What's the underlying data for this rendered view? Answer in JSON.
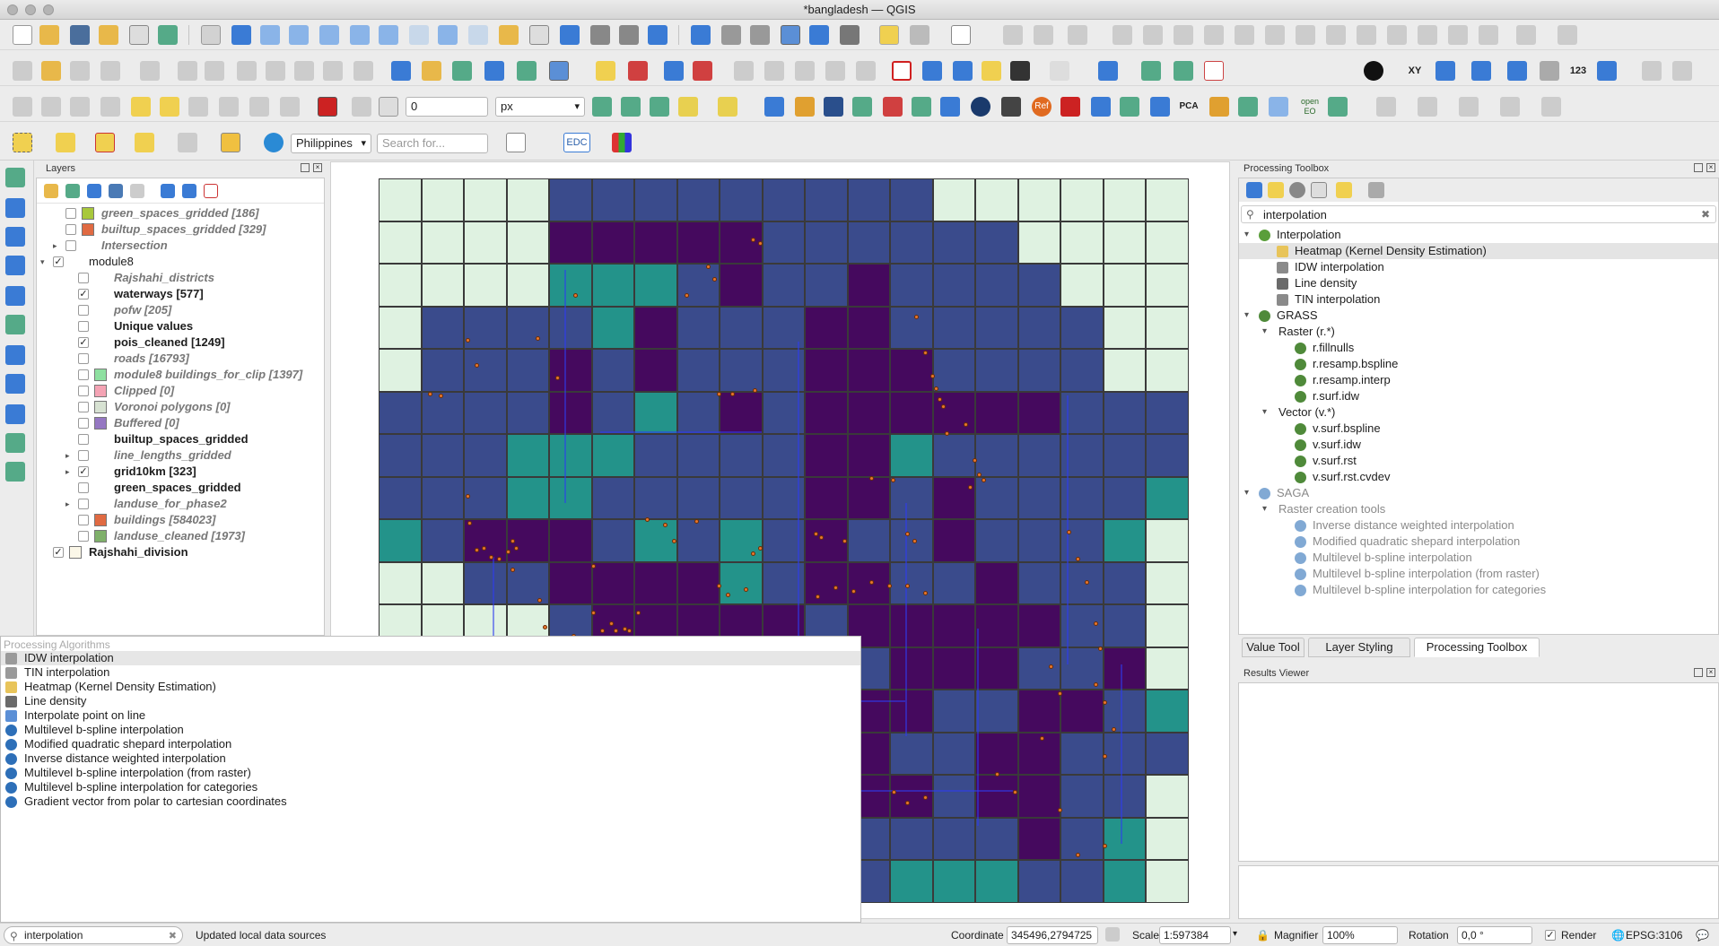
{
  "window": {
    "title": "*bangladesh — QGIS"
  },
  "toolbar": {
    "snap_tolerance_value": "0",
    "snap_units": "px",
    "locator_country": "Philippines",
    "search_placeholder": "Search for...",
    "edc_label": "EDC",
    "ref_label": "Ref",
    "pca_label": "PCA",
    "xy_label": "XY",
    "num_label": "123",
    "openeo_label": "open EO"
  },
  "layers_panel": {
    "title": "Layers",
    "items": [
      {
        "label": "green_spaces_gridded [186]",
        "style": "it",
        "checked": false,
        "swatch": "#a8c83c",
        "indent": 1
      },
      {
        "label": "builtup_spaces_gridded [329]",
        "style": "it",
        "checked": false,
        "swatch": "#e06a42",
        "indent": 1
      },
      {
        "label": "Intersection",
        "style": "it",
        "checked": false,
        "swatch": "",
        "indent": 1,
        "expander": "▸"
      },
      {
        "label": "module8",
        "style": "",
        "checked": true,
        "swatch": "",
        "indent": 0,
        "expander": "▾"
      },
      {
        "label": "Rajshahi_districts",
        "style": "it",
        "checked": false,
        "swatch": "",
        "indent": 2
      },
      {
        "label": "waterways [577]",
        "style": "bold",
        "checked": true,
        "swatch": "",
        "indent": 2
      },
      {
        "label": "pofw [205]",
        "style": "it",
        "checked": false,
        "swatch": "",
        "indent": 2
      },
      {
        "label": "Unique values",
        "style": "bold",
        "checked": false,
        "swatch": "",
        "indent": 2
      },
      {
        "label": "pois_cleaned [1249]",
        "style": "bold",
        "checked": true,
        "swatch": "",
        "indent": 2
      },
      {
        "label": "roads [16793]",
        "style": "it",
        "checked": false,
        "swatch": "",
        "indent": 2
      },
      {
        "label": "module8 buildings_for_clip [1397]",
        "style": "it",
        "checked": false,
        "swatch": "#8ee0a0",
        "indent": 2
      },
      {
        "label": "Clipped [0]",
        "style": "it",
        "checked": false,
        "swatch": "#f4a3b4",
        "indent": 2
      },
      {
        "label": "Voronoi polygons [0]",
        "style": "it",
        "checked": false,
        "swatch": "#d7e2d2",
        "indent": 2
      },
      {
        "label": "Buffered [0]",
        "style": "it",
        "checked": false,
        "swatch": "#9577c2",
        "indent": 2
      },
      {
        "label": "builtup_spaces_gridded",
        "style": "bold",
        "checked": false,
        "swatch": "",
        "indent": 2
      },
      {
        "label": "line_lengths_gridded",
        "style": "it",
        "checked": false,
        "swatch": "",
        "indent": 2,
        "expander": "▸"
      },
      {
        "label": "grid10km [323]",
        "style": "bold",
        "checked": true,
        "swatch": "",
        "indent": 2,
        "expander": "▸"
      },
      {
        "label": "green_spaces_gridded",
        "style": "bold",
        "checked": false,
        "swatch": "",
        "indent": 2
      },
      {
        "label": "landuse_for_phase2",
        "style": "it",
        "checked": false,
        "swatch": "",
        "indent": 2,
        "expander": "▸"
      },
      {
        "label": "buildings [584023]",
        "style": "it",
        "checked": false,
        "swatch": "#e06a42",
        "indent": 2
      },
      {
        "label": "landuse_cleaned [1973]",
        "style": "it",
        "checked": false,
        "swatch": "#7fb06a",
        "indent": 2
      },
      {
        "label": "Rajshahi_division",
        "style": "bold",
        "checked": true,
        "swatch": "#fbf7e8",
        "indent": 0
      }
    ]
  },
  "algorithms_popup": {
    "header": "Processing Algorithms",
    "items": [
      {
        "label": "IDW interpolation",
        "icon": "raster-icon",
        "selected": true
      },
      {
        "label": "TIN interpolation",
        "icon": "raster-icon",
        "selected": false
      },
      {
        "label": "Heatmap (Kernel Density Estimation)",
        "icon": "heatmap-icon",
        "selected": false
      },
      {
        "label": "Line density",
        "icon": "line-density-icon",
        "selected": false
      },
      {
        "label": "Interpolate point on line",
        "icon": "gear-icon",
        "selected": false
      },
      {
        "label": "Multilevel b-spline interpolation",
        "icon": "saga-icon",
        "selected": false
      },
      {
        "label": "Modified quadratic shepard interpolation",
        "icon": "saga-icon",
        "selected": false
      },
      {
        "label": "Inverse distance weighted interpolation",
        "icon": "saga-icon",
        "selected": false
      },
      {
        "label": "Multilevel b-spline interpolation (from raster)",
        "icon": "saga-icon",
        "selected": false
      },
      {
        "label": "Multilevel b-spline interpolation for categories",
        "icon": "saga-icon",
        "selected": false
      },
      {
        "label": "Gradient vector from polar to cartesian coordinates",
        "icon": "saga-icon",
        "selected": false
      }
    ]
  },
  "toolbox": {
    "title": "Processing Toolbox",
    "search_value": "interpolation",
    "tree": [
      {
        "label": "Interpolation",
        "level": 0,
        "icon": "qgis-icon",
        "expander": "▾",
        "grey": false,
        "selected": false
      },
      {
        "label": "Heatmap (Kernel Density Estimation)",
        "level": 1,
        "icon": "heatmap-icon",
        "grey": false,
        "selected": true
      },
      {
        "label": "IDW interpolation",
        "level": 1,
        "icon": "raster-icon",
        "grey": false,
        "selected": false
      },
      {
        "label": "Line density",
        "level": 1,
        "icon": "line-density-icon",
        "grey": false,
        "selected": false
      },
      {
        "label": "TIN interpolation",
        "level": 1,
        "icon": "raster-icon",
        "grey": false,
        "selected": false
      },
      {
        "label": "GRASS",
        "level": 0,
        "icon": "grass-icon",
        "expander": "▾",
        "grey": false,
        "selected": false
      },
      {
        "label": "Raster (r.*)",
        "level": 1,
        "icon": "",
        "expander": "▾",
        "grey": false,
        "selected": false
      },
      {
        "label": "r.fillnulls",
        "level": 2,
        "icon": "grass-icon",
        "grey": false,
        "selected": false
      },
      {
        "label": "r.resamp.bspline",
        "level": 2,
        "icon": "grass-icon",
        "grey": false,
        "selected": false
      },
      {
        "label": "r.resamp.interp",
        "level": 2,
        "icon": "grass-icon",
        "grey": false,
        "selected": false
      },
      {
        "label": "r.surf.idw",
        "level": 2,
        "icon": "grass-icon",
        "grey": false,
        "selected": false
      },
      {
        "label": "Vector (v.*)",
        "level": 1,
        "icon": "",
        "expander": "▾",
        "grey": false,
        "selected": false
      },
      {
        "label": "v.surf.bspline",
        "level": 2,
        "icon": "grass-icon",
        "grey": false,
        "selected": false
      },
      {
        "label": "v.surf.idw",
        "level": 2,
        "icon": "grass-icon",
        "grey": false,
        "selected": false
      },
      {
        "label": "v.surf.rst",
        "level": 2,
        "icon": "grass-icon",
        "grey": false,
        "selected": false
      },
      {
        "label": "v.surf.rst.cvdev",
        "level": 2,
        "icon": "grass-icon",
        "grey": false,
        "selected": false
      },
      {
        "label": "SAGA",
        "level": 0,
        "icon": "saga-icon",
        "expander": "▾",
        "grey": true,
        "selected": false
      },
      {
        "label": "Raster creation tools",
        "level": 1,
        "icon": "",
        "expander": "▾",
        "grey": true,
        "selected": false
      },
      {
        "label": "Inverse distance weighted interpolation",
        "level": 2,
        "icon": "saga-icon",
        "grey": true,
        "selected": false
      },
      {
        "label": "Modified quadratic shepard interpolation",
        "level": 2,
        "icon": "saga-icon",
        "grey": true,
        "selected": false
      },
      {
        "label": "Multilevel b-spline interpolation",
        "level": 2,
        "icon": "saga-icon",
        "grey": true,
        "selected": false
      },
      {
        "label": "Multilevel b-spline interpolation (from raster)",
        "level": 2,
        "icon": "saga-icon",
        "grey": true,
        "selected": false
      },
      {
        "label": "Multilevel b-spline interpolation for categories",
        "level": 2,
        "icon": "saga-icon",
        "grey": true,
        "selected": false
      }
    ]
  },
  "dock_tabs": {
    "items": [
      {
        "label": "Value Tool",
        "active": false
      },
      {
        "label": "Layer Styling",
        "active": false
      },
      {
        "label": "Processing Toolbox",
        "active": true
      }
    ]
  },
  "results_viewer": {
    "title": "Results Viewer"
  },
  "statusbar": {
    "locator_value": "interpolation",
    "message": "Updated local data sources",
    "coordinate_label": "Coordinate",
    "coordinate_value": "345496,2794725",
    "scale_label": "Scale",
    "scale_value": "1:597384",
    "magnifier_label": "Magnifier",
    "magnifier_value": "100%",
    "rotation_label": "Rotation",
    "rotation_value": "0,0 °",
    "render_label": "Render",
    "crs_label": "EPSG:3106"
  },
  "map_colors": {
    "light": "#dff2e1",
    "blue": "#3a4b8c",
    "purple": "#45095e",
    "teal": "#23938a"
  }
}
